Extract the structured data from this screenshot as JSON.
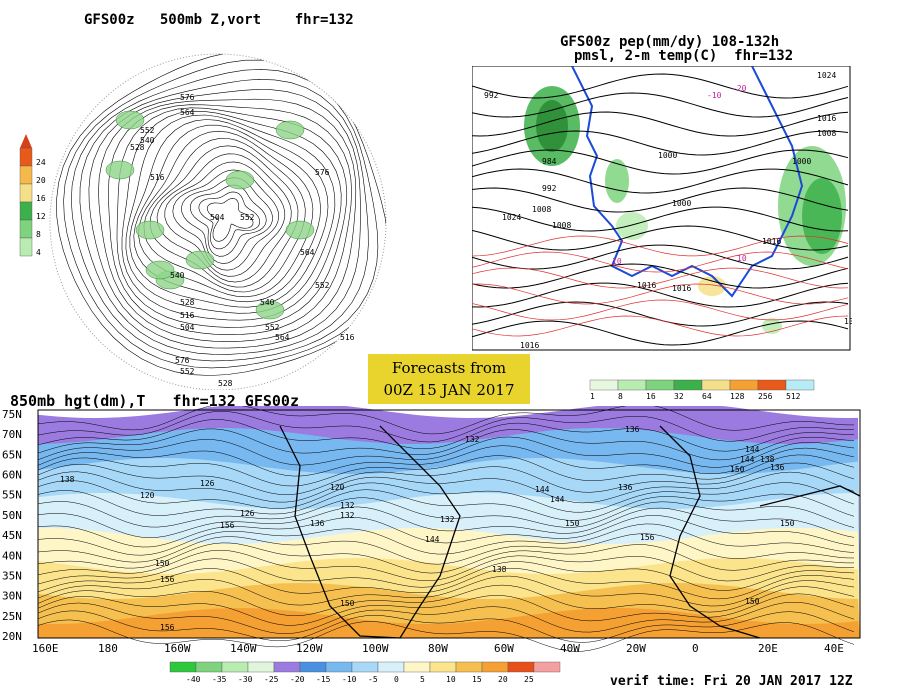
{
  "polar_map": {
    "title": "GFS00z   500mb Z,vort    fhr=132",
    "colorbar_ticks": [
      "24",
      "20",
      "16",
      "12",
      "8",
      "4"
    ],
    "colorbar_colors": [
      "#e85a1a",
      "#f5b84a",
      "#f5e08a",
      "#3cb04a",
      "#7ed37e",
      "#b8ecb0"
    ],
    "contour_labels": [
      "576",
      "564",
      "552",
      "540",
      "528",
      "516",
      "504",
      "552",
      "576",
      "564",
      "552",
      "540",
      "528",
      "516",
      "504",
      "540",
      "552",
      "564",
      "576",
      "552",
      "528",
      "516"
    ]
  },
  "pep_map": {
    "title_line1": "GFS00z pep(mm/dy) 108-132h",
    "title_line2": "pmsl, 2-m temp(C)  fhr=132",
    "legend_ticks": [
      "1",
      "8",
      "16",
      "32",
      "64",
      "128",
      "256",
      "512"
    ],
    "legend_colors": [
      "#e8f8e0",
      "#b8ecb0",
      "#7ed37e",
      "#3cb04a",
      "#f5e08a",
      "#f5a032",
      "#e85a1a",
      "#b8ecf5"
    ],
    "isobar_labels": [
      "992",
      "984",
      "992",
      "1008",
      "1000",
      "1000",
      "1016",
      "1024",
      "1016",
      "1008",
      "1000",
      "1008",
      "1016",
      "1016",
      "1008",
      "1016",
      "1024",
      "10",
      "10",
      "-10",
      "-20"
    ]
  },
  "forecast_box": {
    "line1": "Forecasts from",
    "line2": "00Z 15 JAN 2017"
  },
  "lower_map": {
    "title": "850mb hgt(dm),T   fhr=132 GFS00z",
    "lat_labels": [
      "75N",
      "70N",
      "65N",
      "60N",
      "55N",
      "50N",
      "45N",
      "40N",
      "35N",
      "30N",
      "25N",
      "20N"
    ],
    "lon_labels": [
      "160E",
      "180",
      "160W",
      "140W",
      "120W",
      "100W",
      "80W",
      "60W",
      "40W",
      "20W",
      "0",
      "20E",
      "40E"
    ],
    "contour_labels": [
      "138",
      "132",
      "120",
      "126",
      "120",
      "132",
      "144",
      "150",
      "156",
      "156",
      "144",
      "150",
      "132",
      "136",
      "126",
      "138",
      "150",
      "144",
      "156",
      "132",
      "136",
      "144",
      "150",
      "136",
      "156",
      "150",
      "138",
      "144",
      "150",
      "136"
    ],
    "temp_legend_ticks": [
      "-40",
      "-35",
      "-30",
      "-25",
      "-20",
      "-15",
      "-10",
      "-5",
      "0",
      "5",
      "10",
      "15",
      "20",
      "25"
    ],
    "temp_legend_colors": [
      "#2ec83c",
      "#7ed37e",
      "#b8ecb0",
      "#e0f5dc",
      "#9b7be0",
      "#4a90e0",
      "#78b8f0",
      "#a8d8f8",
      "#d8f0fa",
      "#fff6c8",
      "#fbe48c",
      "#f5c050",
      "#f5a032",
      "#e8501a",
      "#f5a0a0"
    ],
    "verif_time": "verif time: Fri 20 JAN 2017 12Z"
  }
}
